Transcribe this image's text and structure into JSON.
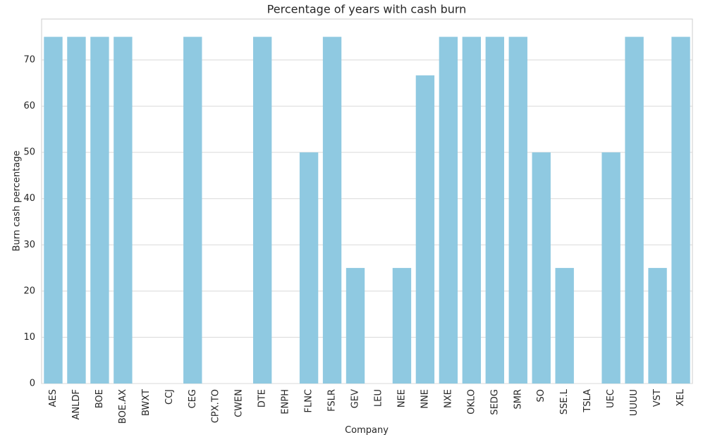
{
  "chart_data": {
    "type": "bar",
    "title": "Percentage of years with cash burn",
    "x_label": "Company",
    "y_label": "Burn cash percentage",
    "categories": [
      "AES",
      "ANLDF",
      "BOE",
      "BOE.AX",
      "BWXT",
      "CCJ",
      "CEG",
      "CPX.TO",
      "CWEN",
      "DTE",
      "ENPH",
      "FLNC",
      "FSLR",
      "GEV",
      "LEU",
      "NEE",
      "NNE",
      "NXE",
      "OKLO",
      "SEDG",
      "SMR",
      "SO",
      "SSE.L",
      "TSLA",
      "UEC",
      "UUUU",
      "VST",
      "XEL"
    ],
    "values": [
      75,
      75,
      75,
      75,
      0,
      0,
      75,
      0,
      0,
      75,
      0,
      50,
      75,
      25,
      0,
      25,
      66.67,
      75,
      75,
      75,
      75,
      50,
      25,
      0,
      50,
      75,
      25,
      75
    ],
    "color": "#8fc9e1",
    "ylim": [
      0,
      78.85
    ],
    "yticks": [
      0,
      10,
      20,
      30,
      40,
      50,
      60,
      70
    ],
    "grid": true
  }
}
